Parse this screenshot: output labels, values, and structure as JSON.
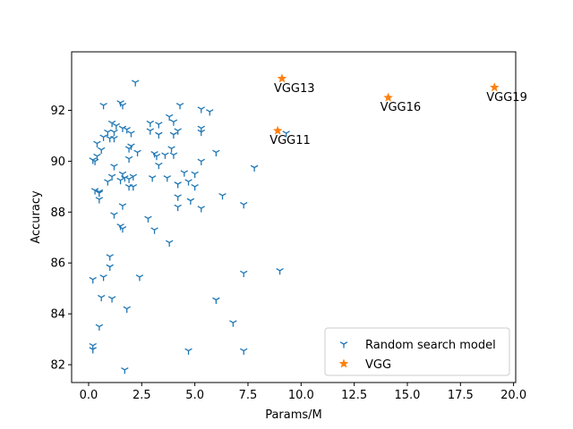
{
  "chart_data": {
    "type": "scatter",
    "title": "",
    "xlabel": "Params/M",
    "ylabel": "Accuracy",
    "xlim": [
      -0.8,
      20.1
    ],
    "ylim": [
      81.3,
      94.3
    ],
    "xticks": [
      0.0,
      2.5,
      5.0,
      7.5,
      10.0,
      12.5,
      15.0,
      17.5,
      20.0
    ],
    "xtick_labels": [
      "0.0",
      "2.5",
      "5.0",
      "7.5",
      "10.0",
      "12.5",
      "15.0",
      "17.5",
      "20.0"
    ],
    "yticks": [
      82,
      84,
      86,
      88,
      90,
      92
    ],
    "ytick_labels": [
      "82",
      "84",
      "86",
      "88",
      "90",
      "92"
    ],
    "grid": false,
    "legend_position": "lower-right",
    "colors": {
      "random": "#1f77b4",
      "vgg": "#ff7f0e"
    },
    "series": [
      {
        "name": "Random search model",
        "marker": "tri_down",
        "points": [
          [
            2.2,
            93.1
          ],
          [
            1.5,
            92.3
          ],
          [
            1.6,
            92.2
          ],
          [
            0.7,
            92.2
          ],
          [
            4.3,
            92.2
          ],
          [
            5.3,
            92.05
          ],
          [
            5.7,
            91.95
          ],
          [
            3.8,
            91.75
          ],
          [
            4.0,
            91.55
          ],
          [
            1.1,
            91.5
          ],
          [
            1.3,
            91.4
          ],
          [
            2.9,
            91.5
          ],
          [
            3.3,
            91.45
          ],
          [
            5.3,
            91.3
          ],
          [
            1.6,
            91.3
          ],
          [
            1.8,
            91.25
          ],
          [
            0.9,
            91.15
          ],
          [
            1.2,
            91.15
          ],
          [
            2.9,
            91.2
          ],
          [
            4.2,
            91.2
          ],
          [
            5.3,
            91.15
          ],
          [
            2.0,
            91.1
          ],
          [
            3.3,
            91.05
          ],
          [
            4.0,
            91.05
          ],
          [
            9.3,
            91.1
          ],
          [
            0.7,
            90.95
          ],
          [
            1.0,
            90.9
          ],
          [
            1.2,
            90.9
          ],
          [
            0.4,
            90.7
          ],
          [
            2.0,
            90.6
          ],
          [
            1.9,
            90.5
          ],
          [
            3.9,
            90.5
          ],
          [
            0.6,
            90.45
          ],
          [
            2.3,
            90.35
          ],
          [
            6.0,
            90.35
          ],
          [
            3.1,
            90.3
          ],
          [
            3.6,
            90.25
          ],
          [
            3.2,
            90.2
          ],
          [
            4.0,
            90.25
          ],
          [
            0.4,
            90.2
          ],
          [
            1.9,
            90.1
          ],
          [
            0.2,
            90.05
          ],
          [
            0.3,
            90.0
          ],
          [
            5.3,
            90.0
          ],
          [
            3.3,
            89.85
          ],
          [
            1.2,
            89.8
          ],
          [
            7.8,
            89.75
          ],
          [
            4.5,
            89.55
          ],
          [
            5.0,
            89.5
          ],
          [
            1.6,
            89.5
          ],
          [
            1.1,
            89.4
          ],
          [
            2.1,
            89.4
          ],
          [
            1.7,
            89.35
          ],
          [
            3.0,
            89.35
          ],
          [
            3.7,
            89.35
          ],
          [
            1.9,
            89.3
          ],
          [
            1.5,
            89.25
          ],
          [
            0.9,
            89.2
          ],
          [
            4.7,
            89.2
          ],
          [
            4.2,
            89.1
          ],
          [
            5.0,
            89.0
          ],
          [
            1.9,
            89.0
          ],
          [
            2.1,
            89.0
          ],
          [
            0.3,
            88.85
          ],
          [
            0.5,
            88.8
          ],
          [
            0.5,
            88.75
          ],
          [
            6.3,
            88.65
          ],
          [
            4.2,
            88.6
          ],
          [
            0.5,
            88.5
          ],
          [
            4.8,
            88.45
          ],
          [
            7.3,
            88.3
          ],
          [
            1.6,
            88.25
          ],
          [
            4.2,
            88.2
          ],
          [
            5.3,
            88.15
          ],
          [
            1.2,
            87.9
          ],
          [
            2.8,
            87.75
          ],
          [
            1.5,
            87.45
          ],
          [
            1.6,
            87.35
          ],
          [
            3.1,
            87.3
          ],
          [
            3.8,
            86.8
          ],
          [
            1.0,
            86.25
          ],
          [
            1.0,
            85.85
          ],
          [
            9.0,
            85.7
          ],
          [
            7.3,
            85.6
          ],
          [
            2.4,
            85.45
          ],
          [
            0.2,
            85.35
          ],
          [
            0.7,
            85.45
          ],
          [
            0.6,
            84.65
          ],
          [
            1.1,
            84.6
          ],
          [
            6.0,
            84.55
          ],
          [
            1.8,
            84.2
          ],
          [
            6.8,
            83.65
          ],
          [
            0.5,
            83.5
          ],
          [
            0.2,
            82.75
          ],
          [
            0.2,
            82.6
          ],
          [
            4.7,
            82.55
          ],
          [
            7.3,
            82.55
          ],
          [
            1.7,
            81.8
          ]
        ]
      },
      {
        "name": "VGG",
        "marker": "star",
        "points": [
          [
            8.9,
            91.2
          ],
          [
            9.1,
            93.25
          ],
          [
            14.1,
            92.5
          ],
          [
            19.1,
            92.9
          ]
        ]
      }
    ],
    "annotations": [
      {
        "text": "VGG13",
        "x": 9.1,
        "y": 93.25
      },
      {
        "text": "VGG16",
        "x": 14.1,
        "y": 92.5
      },
      {
        "text": "VGG19",
        "x": 19.1,
        "y": 92.9
      },
      {
        "text": "VGG11",
        "x": 8.9,
        "y": 91.2
      }
    ]
  }
}
